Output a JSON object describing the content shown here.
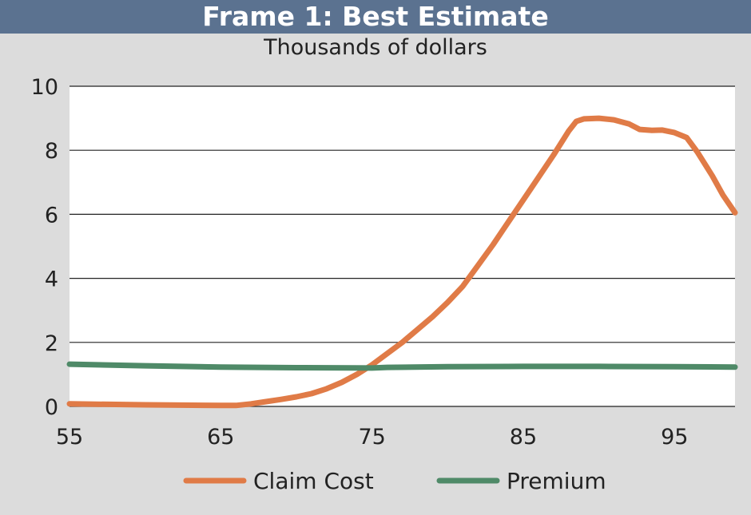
{
  "header": {
    "title": "Frame 1: Best Estimate",
    "subtitle": "Thousands of dollars"
  },
  "colors": {
    "title_bar": "#5b7290",
    "background": "#dcdcdc",
    "plot_background": "#ffffff",
    "claim_cost": "#e07b47",
    "premium": "#4f8a68"
  },
  "chart_data": {
    "type": "line",
    "title": "Frame 1: Best Estimate",
    "subtitle": "Thousands of dollars",
    "xlabel": "",
    "ylabel": "",
    "xlim": [
      55,
      99
    ],
    "ylim": [
      0,
      10
    ],
    "x_ticks": [
      55,
      65,
      75,
      85,
      95
    ],
    "y_ticks": [
      0,
      2,
      4,
      6,
      8,
      10
    ],
    "grid": "horizontal",
    "legend_position": "bottom",
    "series": [
      {
        "name": "Claim Cost",
        "color": "#e07b47",
        "points": [
          [
            55,
            0.08
          ],
          [
            60,
            0.05
          ],
          [
            65,
            0.03
          ],
          [
            66,
            0.03
          ],
          [
            67,
            0.08
          ],
          [
            68,
            0.15
          ],
          [
            69,
            0.22
          ],
          [
            70,
            0.3
          ],
          [
            71,
            0.4
          ],
          [
            72,
            0.55
          ],
          [
            73,
            0.75
          ],
          [
            74,
            1.0
          ],
          [
            75,
            1.3
          ],
          [
            76,
            1.65
          ],
          [
            77,
            2.0
          ],
          [
            78,
            2.4
          ],
          [
            79,
            2.8
          ],
          [
            80,
            3.25
          ],
          [
            81,
            3.75
          ],
          [
            82,
            4.4
          ],
          [
            83,
            5.05
          ],
          [
            84,
            5.75
          ],
          [
            85,
            6.45
          ],
          [
            86,
            7.15
          ],
          [
            87,
            7.85
          ],
          [
            88,
            8.6
          ],
          [
            88.5,
            8.9
          ],
          [
            89,
            8.98
          ],
          [
            90,
            9.0
          ],
          [
            91,
            8.95
          ],
          [
            92,
            8.82
          ],
          [
            92.7,
            8.65
          ],
          [
            93.5,
            8.62
          ],
          [
            94.2,
            8.63
          ],
          [
            95,
            8.55
          ],
          [
            95.8,
            8.4
          ],
          [
            96.5,
            7.95
          ],
          [
            97.5,
            7.2
          ],
          [
            98.2,
            6.6
          ],
          [
            99,
            6.05
          ]
        ]
      },
      {
        "name": "Premium",
        "color": "#4f8a68",
        "points": [
          [
            55,
            1.32
          ],
          [
            60,
            1.27
          ],
          [
            65,
            1.23
          ],
          [
            70,
            1.21
          ],
          [
            75,
            1.2
          ],
          [
            76,
            1.22
          ],
          [
            80,
            1.24
          ],
          [
            85,
            1.25
          ],
          [
            90,
            1.25
          ],
          [
            95,
            1.24
          ],
          [
            99,
            1.23
          ]
        ]
      }
    ]
  }
}
